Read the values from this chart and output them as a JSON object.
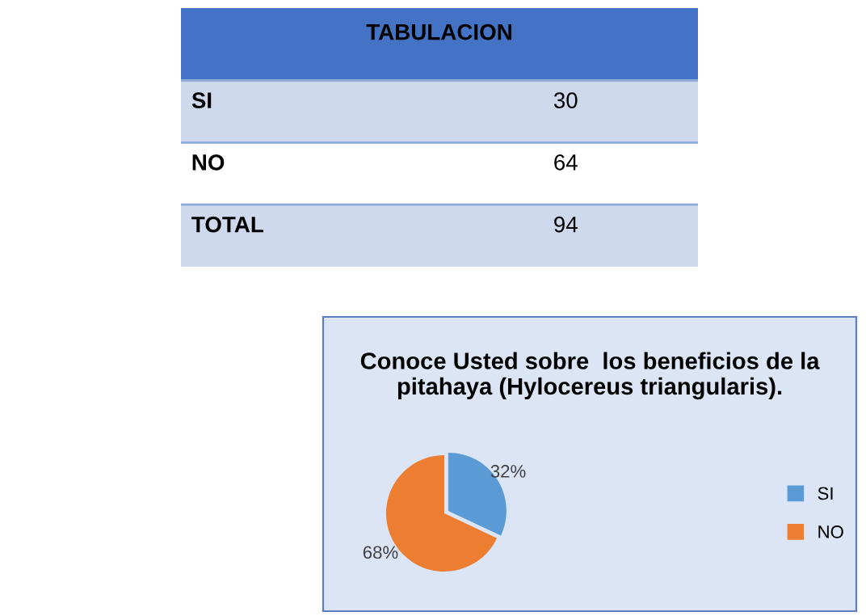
{
  "chart_data": [
    {
      "type": "other",
      "title": "TABULACION",
      "annotations": [
        "SI",
        "30",
        "NO",
        "64",
        "TOTAL",
        "94"
      ]
    },
    {
      "type": "pie",
      "title": "Conoce Usted sobre  los beneficios de la pitahaya (Hylocereus triangularis).",
      "categories": [
        "SI",
        "NO"
      ],
      "values": [
        32,
        68
      ],
      "colors": [
        "#5b9bd5",
        "#ed7d31"
      ],
      "value_labels": [
        "32%",
        "68%"
      ],
      "legend": "right"
    }
  ]
}
